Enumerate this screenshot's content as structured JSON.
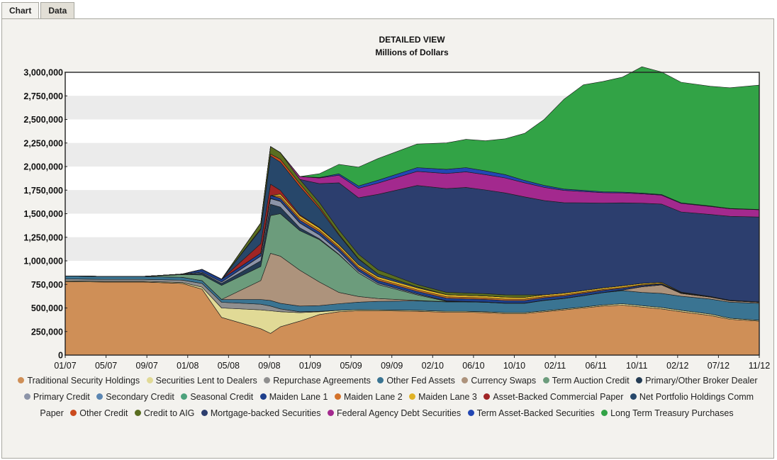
{
  "tabs": [
    {
      "label": "Chart",
      "active": true
    },
    {
      "label": "Data",
      "active": false
    }
  ],
  "chart_data": {
    "type": "area",
    "stacked": true,
    "title": "DETAILED VIEW",
    "subtitle": "Millions of Dollars",
    "ylim": [
      0,
      3000000
    ],
    "yticks": [
      "0",
      "250,000",
      "500,000",
      "750,000",
      "1,000,000",
      "1,250,000",
      "1,500,000",
      "1,750,000",
      "2,000,000",
      "2,250,000",
      "2,500,000",
      "2,750,000",
      "3,000,000"
    ],
    "xticks": [
      "01/07",
      "05/07",
      "09/07",
      "01/08",
      "05/08",
      "09/08",
      "01/09",
      "05/09",
      "09/09",
      "02/10",
      "06/10",
      "10/10",
      "02/11",
      "06/11",
      "10/11",
      "02/12",
      "07/12",
      "11/12"
    ],
    "xlim": [
      "2007-01",
      "2012-12"
    ],
    "grid": "horizontal bands",
    "legend_position": "bottom",
    "x": [
      "2007-01",
      "2007-05",
      "2007-09",
      "2008-01",
      "2008-03",
      "2008-05",
      "2008-09",
      "2008-10",
      "2008-11",
      "2009-01",
      "2009-03",
      "2009-05",
      "2009-07",
      "2009-09",
      "2010-01",
      "2010-04",
      "2010-06",
      "2010-08",
      "2010-10",
      "2010-12",
      "2011-02",
      "2011-04",
      "2011-06",
      "2011-08",
      "2011-10",
      "2011-12",
      "2012-02",
      "2012-04",
      "2012-07",
      "2012-09",
      "2012-12"
    ],
    "series": [
      {
        "name": "Traditional Security Holdings",
        "color": "#cf8f57",
        "values": [
          780000,
          775000,
          775000,
          760000,
          700000,
          400000,
          280000,
          230000,
          300000,
          360000,
          430000,
          460000,
          470000,
          470000,
          465000,
          455000,
          455000,
          450000,
          440000,
          440000,
          460000,
          480000,
          500000,
          520000,
          530000,
          510000,
          490000,
          460000,
          420000,
          380000,
          360000
        ]
      },
      {
        "name": "Securities Lent to Dealers",
        "color": "#e1da96",
        "values": [
          8000,
          8000,
          8000,
          10000,
          20000,
          100000,
          200000,
          240000,
          160000,
          90000,
          30000,
          15000,
          12000,
          10000,
          10000,
          10000,
          10000,
          10000,
          10000,
          10000,
          10000,
          10000,
          10000,
          12000,
          15000,
          15000,
          15000,
          15000,
          15000,
          12000,
          10000
        ]
      },
      {
        "name": "Repurchase Agreements",
        "color": "#8f8f8f",
        "values": [
          20000,
          20000,
          20000,
          25000,
          40000,
          60000,
          60000,
          50000,
          30000,
          10000,
          5000,
          0,
          0,
          0,
          0,
          0,
          0,
          0,
          0,
          0,
          0,
          0,
          0,
          0,
          0,
          0,
          0,
          0,
          0,
          0,
          0
        ]
      },
      {
        "name": "Other Fed Assets",
        "color": "#3a7492",
        "values": [
          30000,
          30000,
          30000,
          30000,
          30000,
          30000,
          50000,
          60000,
          60000,
          60000,
          60000,
          70000,
          80000,
          90000,
          100000,
          100000,
          100000,
          100000,
          100000,
          100000,
          110000,
          110000,
          120000,
          130000,
          140000,
          140000,
          150000,
          150000,
          160000,
          170000,
          180000
        ]
      },
      {
        "name": "Currency Swaps",
        "color": "#ad937c",
        "values": [
          0,
          0,
          0,
          0,
          0,
          0,
          200000,
          500000,
          500000,
          380000,
          250000,
          120000,
          60000,
          30000,
          5000,
          1000,
          1000,
          1000,
          1000,
          1000,
          1000,
          1000,
          1000,
          1000,
          5000,
          60000,
          90000,
          30000,
          20000,
          15000,
          10000
        ]
      },
      {
        "name": "Term Auction Credit",
        "color": "#6c9c7c",
        "values": [
          0,
          0,
          0,
          30000,
          60000,
          150000,
          150000,
          400000,
          450000,
          420000,
          450000,
          400000,
          250000,
          150000,
          60000,
          5000,
          0,
          0,
          0,
          0,
          0,
          0,
          0,
          0,
          0,
          0,
          0,
          0,
          0,
          0,
          0
        ]
      },
      {
        "name": "Primary/Other Broker Dealer",
        "color": "#243c54",
        "values": [
          0,
          0,
          0,
          0,
          20000,
          20000,
          60000,
          120000,
          70000,
          30000,
          10000,
          5000,
          0,
          0,
          0,
          0,
          0,
          0,
          0,
          0,
          0,
          0,
          0,
          0,
          0,
          0,
          0,
          0,
          0,
          0,
          0
        ]
      },
      {
        "name": "Primary Credit",
        "color": "#8c94a8",
        "values": [
          2000,
          2000,
          2000,
          5000,
          10000,
          15000,
          50000,
          60000,
          60000,
          50000,
          40000,
          30000,
          20000,
          15000,
          10000,
          5000,
          3000,
          2000,
          1000,
          1000,
          1000,
          1000,
          1000,
          1000,
          1000,
          1000,
          1000,
          1000,
          1000,
          1000,
          1000
        ]
      },
      {
        "name": "Secondary Credit",
        "color": "#5b86b2",
        "values": [
          0,
          0,
          0,
          0,
          0,
          0,
          2000,
          3000,
          3000,
          2000,
          2000,
          1000,
          0,
          0,
          0,
          0,
          0,
          0,
          0,
          0,
          0,
          0,
          0,
          0,
          0,
          0,
          0,
          0,
          0,
          0,
          0
        ]
      },
      {
        "name": "Seasonal Credit",
        "color": "#4da27c",
        "values": [
          0,
          0,
          0,
          0,
          0,
          0,
          0,
          0,
          0,
          0,
          0,
          0,
          0,
          0,
          0,
          0,
          0,
          0,
          0,
          0,
          0,
          0,
          0,
          0,
          0,
          0,
          0,
          0,
          0,
          0,
          0
        ]
      },
      {
        "name": "Maiden Lane 1",
        "color": "#1e3f8c",
        "values": [
          0,
          0,
          0,
          0,
          30000,
          30000,
          30000,
          30000,
          30000,
          30000,
          28000,
          28000,
          27000,
          27000,
          27000,
          28000,
          28000,
          28000,
          27000,
          26000,
          26000,
          25000,
          24000,
          22000,
          18000,
          12000,
          8000,
          5000,
          3000,
          2000,
          2000
        ]
      },
      {
        "name": "Maiden Lane 2",
        "color": "#d4722a",
        "values": [
          0,
          0,
          0,
          0,
          0,
          0,
          0,
          0,
          20000,
          20000,
          18000,
          17000,
          16000,
          16000,
          15000,
          15000,
          15000,
          15000,
          15000,
          15000,
          13000,
          12000,
          11000,
          10000,
          9000,
          8000,
          6000,
          3000,
          1000,
          1000,
          1000
        ]
      },
      {
        "name": "Maiden Lane 3",
        "color": "#e0b226",
        "values": [
          0,
          0,
          0,
          0,
          0,
          0,
          0,
          0,
          25000,
          27000,
          26000,
          25000,
          24000,
          23000,
          22000,
          22000,
          22000,
          21000,
          21000,
          20000,
          19000,
          18000,
          18000,
          17000,
          17000,
          15000,
          12000,
          5000,
          2000,
          1000,
          1000
        ]
      },
      {
        "name": "Asset-Backed Commercial Paper",
        "color": "#a02525",
        "values": [
          0,
          0,
          0,
          0,
          0,
          0,
          100000,
          120000,
          40000,
          10000,
          5000,
          2000,
          0,
          0,
          0,
          0,
          0,
          0,
          0,
          0,
          0,
          0,
          0,
          0,
          0,
          0,
          0,
          0,
          0,
          0,
          0
        ]
      },
      {
        "name": "Net Portfolio Holdings Comm Paper",
        "color": "#27476a",
        "values": [
          0,
          0,
          0,
          0,
          0,
          0,
          150000,
          300000,
          300000,
          300000,
          200000,
          100000,
          60000,
          30000,
          10000,
          0,
          0,
          0,
          0,
          0,
          0,
          0,
          0,
          0,
          0,
          0,
          0,
          0,
          0,
          0,
          0
        ]
      },
      {
        "name": "Other Credit",
        "color": "#cb4b1e",
        "values": [
          0,
          0,
          0,
          0,
          0,
          0,
          10000,
          20000,
          30000,
          30000,
          20000,
          10000,
          5000,
          0,
          0,
          0,
          0,
          0,
          0,
          0,
          0,
          0,
          0,
          0,
          0,
          0,
          0,
          0,
          0,
          0,
          0
        ]
      },
      {
        "name": "Credit to AIG",
        "color": "#5a6e20",
        "values": [
          0,
          0,
          0,
          0,
          0,
          0,
          60000,
          80000,
          70000,
          45000,
          45000,
          45000,
          45000,
          44000,
          25000,
          25000,
          25000,
          25000,
          25000,
          25000,
          0,
          0,
          0,
          0,
          0,
          0,
          0,
          0,
          0,
          0,
          0
        ]
      },
      {
        "name": "Mortgage-backed Securities",
        "color": "#2c3e6e",
        "values": [
          0,
          0,
          0,
          0,
          0,
          0,
          0,
          0,
          0,
          0,
          200000,
          500000,
          600000,
          800000,
          1050000,
          1100000,
          1120000,
          1100000,
          1080000,
          1040000,
          1000000,
          960000,
          930000,
          900000,
          880000,
          850000,
          830000,
          850000,
          870000,
          890000,
          900000
        ]
      },
      {
        "name": "Federal Agency Debt Securities",
        "color": "#a3298e",
        "values": [
          0,
          0,
          0,
          0,
          0,
          0,
          0,
          0,
          0,
          30000,
          60000,
          80000,
          100000,
          120000,
          150000,
          160000,
          165000,
          162000,
          160000,
          150000,
          140000,
          130000,
          120000,
          110000,
          105000,
          100000,
          95000,
          90000,
          85000,
          80000,
          76000
        ]
      },
      {
        "name": "Term Asset-Backed Securities",
        "color": "#2347b4",
        "values": [
          0,
          0,
          0,
          0,
          0,
          0,
          0,
          0,
          0,
          0,
          5000,
          15000,
          25000,
          30000,
          40000,
          45000,
          45000,
          40000,
          35000,
          25000,
          20000,
          15000,
          12000,
          10000,
          9000,
          8000,
          7000,
          6000,
          5000,
          4000,
          3000
        ]
      },
      {
        "name": "Long Term Treasury Purchases",
        "color": "#32a346",
        "values": [
          0,
          0,
          0,
          0,
          0,
          0,
          0,
          0,
          0,
          0,
          40000,
          100000,
          200000,
          230000,
          250000,
          280000,
          300000,
          320000,
          380000,
          500000,
          700000,
          950000,
          1120000,
          1170000,
          1220000,
          1340000,
          1300000,
          1280000,
          1270000,
          1280000,
          1320000
        ]
      }
    ]
  }
}
